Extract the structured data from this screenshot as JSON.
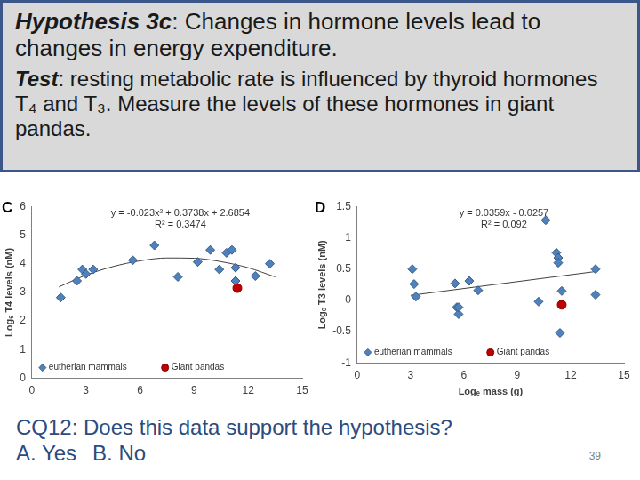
{
  "slide": {
    "hypothesis_label": "Hypothesis 3c",
    "hypothesis_text": ": Changes in hormone levels lead to changes in energy expenditure.",
    "test_label": "Test",
    "test_text": ": resting metabolic rate is influenced by thyroid hormones T₄ and T₃.  Measure the levels of these hormones in giant pandas.",
    "question_label": "CQ12",
    "question_text": ": Does this data support the hypothesis?",
    "options": [
      "A. Yes",
      "B. No"
    ],
    "page_number": "39"
  },
  "chart_data": [
    {
      "type": "scatter",
      "title": "C",
      "y_label": "Logₑ T4 levels (nM)",
      "xlim": [
        0,
        15
      ],
      "xticks": [
        0,
        3,
        6,
        9,
        12,
        15
      ],
      "ylim": [
        0,
        6
      ],
      "yticks": [
        0,
        1,
        2,
        3,
        4,
        5,
        6
      ],
      "grid": false,
      "legend": "bottom",
      "series": [
        {
          "name": "eutherian mammals",
          "color": "#4f81bd",
          "marker": "diamond",
          "x": [
            1.6,
            2.5,
            2.8,
            3.0,
            3.4,
            5.6,
            6.8,
            8.1,
            9.2,
            9.9,
            10.4,
            10.8,
            11.1,
            11.3,
            11.3,
            12.4,
            13.2
          ],
          "values": [
            2.82,
            3.4,
            3.8,
            3.64,
            3.8,
            4.12,
            4.64,
            3.54,
            4.06,
            4.48,
            3.8,
            4.38,
            4.48,
            3.86,
            3.4,
            3.57,
            4.0
          ]
        },
        {
          "name": "Giant pandas",
          "color": "#c00000",
          "marker": "circle",
          "x": [
            11.4
          ],
          "values": [
            3.15
          ]
        }
      ],
      "trendline": {
        "color": "#404040",
        "x": [
          1.5,
          3,
          4.5,
          6,
          7.5,
          9,
          10.5,
          12,
          13.5
        ],
        "values": [
          3.19,
          3.6,
          3.9,
          4.1,
          4.2,
          4.19,
          4.07,
          3.86,
          3.54
        ]
      },
      "annotations": [
        "y = -0.023x² + 0.3738x + 2.6854",
        "R² = 0.3474"
      ]
    },
    {
      "type": "scatter",
      "title": "D",
      "y_label": "Logₑ T3 levels (nM)",
      "x_label": "Logₑ mass (g)",
      "xlim": [
        0,
        15
      ],
      "xticks": [
        0,
        3,
        6,
        9,
        12,
        15
      ],
      "ylim": [
        -1,
        1.5
      ],
      "yticks": [
        -1,
        -0.5,
        0,
        0.5,
        1,
        1.5
      ],
      "grid": false,
      "legend": "bottom",
      "series": [
        {
          "name": "eutherian mammals",
          "color": "#4f81bd",
          "marker": "diamond",
          "x": [
            3.1,
            3.2,
            3.3,
            5.5,
            5.6,
            5.7,
            5.7,
            6.3,
            6.8,
            10.2,
            10.6,
            11.2,
            11.3,
            11.3,
            11.4,
            11.5,
            13.4,
            13.4
          ],
          "values": [
            0.5,
            0.26,
            0.06,
            0.27,
            -0.11,
            -0.22,
            -0.11,
            0.31,
            0.16,
            -0.02,
            1.28,
            0.76,
            0.68,
            0.6,
            -0.52,
            0.15,
            0.5,
            0.09
          ]
        },
        {
          "name": "Giant pandas",
          "color": "#c00000",
          "marker": "circle",
          "x": [
            11.5
          ],
          "values": [
            -0.07
          ]
        }
      ],
      "trendline": {
        "color": "#404040",
        "x": [
          3,
          13.4
        ],
        "values": [
          0.08,
          0.46
        ]
      },
      "annotations": [
        "y = 0.0359x - 0.0257",
        "R² = 0.092"
      ]
    }
  ]
}
